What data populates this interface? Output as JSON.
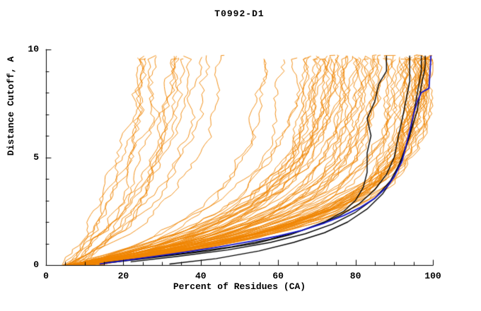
{
  "chart_data": {
    "type": "line",
    "title": "T0992-D1",
    "xlabel": "Percent of Residues (CA)",
    "ylabel": "Distance Cutoff, A",
    "xlim": [
      0,
      100
    ],
    "ylim": [
      0,
      10
    ],
    "x_major_ticks": [
      0,
      20,
      40,
      60,
      80,
      100
    ],
    "x_minor_step": 5,
    "y_major_ticks": [
      0,
      5,
      10
    ],
    "y_minor_step": 1,
    "grid": false,
    "legend": "none",
    "colors": {
      "orange_models": "#ef8500",
      "black_reference": "#000000",
      "blue_highlight": "#1414cc",
      "axis": "#000000"
    },
    "orange_model_generator": {
      "note": "approximately 90 orange model accuracy curves fanning from lower-left (~5% residues at 0 A) to tops between ~22% and 100% at ~9.7 A",
      "count": 90,
      "seed": 20992,
      "x_start_min": 5,
      "x_start_max": 15,
      "x_top_min": 22,
      "x_top_max": 100,
      "top_skew": 1.8,
      "shape_min": 1.6,
      "shape_max": 4.6,
      "y_top_min": 9.5,
      "y_top_max": 9.75,
      "jitter": 1.6,
      "y_step": 0.18
    },
    "series": [
      {
        "name": "blue-highlight-model",
        "color_key": "blue_highlight",
        "width": 1.8,
        "points": [
          [
            14,
            0.05
          ],
          [
            20,
            0.2
          ],
          [
            28,
            0.4
          ],
          [
            36,
            0.6
          ],
          [
            45,
            0.85
          ],
          [
            53,
            1.1
          ],
          [
            60,
            1.35
          ],
          [
            66,
            1.6
          ],
          [
            72,
            1.95
          ],
          [
            77,
            2.3
          ],
          [
            81,
            2.65
          ],
          [
            85,
            3.1
          ],
          [
            88,
            3.6
          ],
          [
            90,
            4.1
          ],
          [
            92,
            4.8
          ],
          [
            93,
            5.5
          ],
          [
            94,
            6.2
          ],
          [
            95,
            7.0
          ],
          [
            96,
            7.6
          ],
          [
            97,
            8.0
          ],
          [
            99,
            8.2
          ],
          [
            99.5,
            9.7
          ]
        ]
      },
      {
        "name": "black-reference-model-1",
        "color_key": "black_reference",
        "width": 1.4,
        "points": [
          [
            15,
            0.1
          ],
          [
            24,
            0.3
          ],
          [
            36,
            0.55
          ],
          [
            48,
            0.85
          ],
          [
            58,
            1.2
          ],
          [
            66,
            1.6
          ],
          [
            72,
            2.0
          ],
          [
            77,
            2.5
          ],
          [
            80,
            3.0
          ],
          [
            82,
            3.6
          ],
          [
            83,
            4.3
          ],
          [
            83,
            5.2
          ],
          [
            84,
            6.0
          ],
          [
            83,
            6.8
          ],
          [
            85,
            7.6
          ],
          [
            86,
            8.4
          ],
          [
            88,
            9.0
          ],
          [
            88,
            9.7
          ]
        ]
      },
      {
        "name": "black-reference-model-2",
        "color_key": "black_reference",
        "width": 1.4,
        "points": [
          [
            17,
            0.12
          ],
          [
            28,
            0.35
          ],
          [
            42,
            0.65
          ],
          [
            54,
            1.0
          ],
          [
            63,
            1.4
          ],
          [
            70,
            1.85
          ],
          [
            76,
            2.3
          ],
          [
            81,
            2.85
          ],
          [
            85,
            3.5
          ],
          [
            88,
            4.2
          ],
          [
            90,
            5.0
          ],
          [
            91,
            5.9
          ],
          [
            92,
            6.7
          ],
          [
            93,
            7.6
          ],
          [
            94,
            8.5
          ],
          [
            94,
            9.7
          ]
        ]
      },
      {
        "name": "black-reference-model-3",
        "color_key": "black_reference",
        "width": 1.4,
        "points": [
          [
            32,
            0.05
          ],
          [
            44,
            0.3
          ],
          [
            55,
            0.65
          ],
          [
            64,
            1.05
          ],
          [
            72,
            1.5
          ],
          [
            78,
            2.0
          ],
          [
            83,
            2.6
          ],
          [
            87,
            3.3
          ],
          [
            90,
            4.1
          ],
          [
            92,
            5.0
          ],
          [
            94,
            6.0
          ],
          [
            95,
            7.0
          ],
          [
            96,
            8.0
          ],
          [
            97,
            9.0
          ],
          [
            97,
            9.7
          ]
        ]
      },
      {
        "name": "black-reference-model-4",
        "color_key": "black_reference",
        "width": 1.4,
        "points": [
          [
            22,
            0.15
          ],
          [
            34,
            0.4
          ],
          [
            47,
            0.7
          ],
          [
            58,
            1.05
          ],
          [
            67,
            1.45
          ],
          [
            74,
            1.9
          ],
          [
            80,
            2.45
          ],
          [
            85,
            3.1
          ],
          [
            89,
            3.9
          ],
          [
            92,
            4.9
          ],
          [
            94,
            6.0
          ],
          [
            96,
            7.2
          ],
          [
            97,
            8.3
          ],
          [
            98,
            9.2
          ],
          [
            98,
            9.7
          ]
        ]
      }
    ]
  }
}
